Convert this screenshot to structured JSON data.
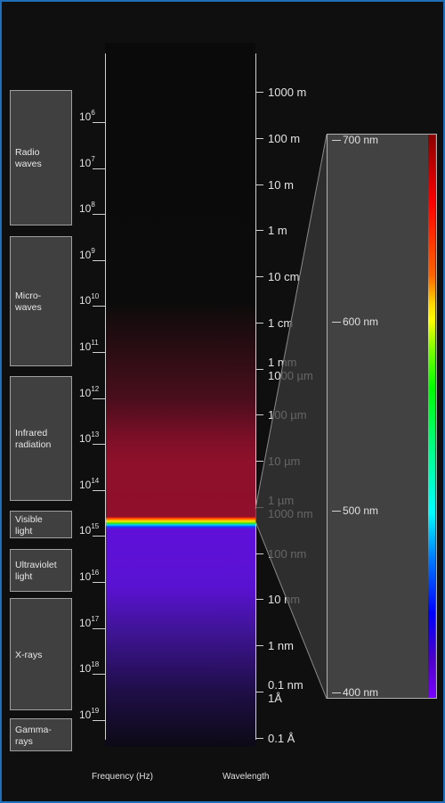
{
  "bands": [
    {
      "id": "radio",
      "label": "Radio\nwaves"
    },
    {
      "id": "microwaves",
      "label": "Micro-\nwaves"
    },
    {
      "id": "infrared",
      "label": "Infrared\nradiation"
    },
    {
      "id": "visible",
      "label": "Visible\nlight"
    },
    {
      "id": "ultraviolet",
      "label": "Ultraviolet\nlight"
    },
    {
      "id": "xrays",
      "label": "X-rays"
    },
    {
      "id": "gamma",
      "label": "Gamma-\nrays"
    }
  ],
  "frequency_labels": [
    {
      "base": "10",
      "exp": "6"
    },
    {
      "base": "10",
      "exp": "7"
    },
    {
      "base": "10",
      "exp": "8"
    },
    {
      "base": "10",
      "exp": "9"
    },
    {
      "base": "10",
      "exp": "10"
    },
    {
      "base": "10",
      "exp": "11"
    },
    {
      "base": "10",
      "exp": "12"
    },
    {
      "base": "10",
      "exp": "13"
    },
    {
      "base": "10",
      "exp": "14"
    },
    {
      "base": "10",
      "exp": "15"
    },
    {
      "base": "10",
      "exp": "16"
    },
    {
      "base": "10",
      "exp": "17"
    },
    {
      "base": "10",
      "exp": "18"
    },
    {
      "base": "10",
      "exp": "19"
    }
  ],
  "wavelength_labels": [
    "1000 m",
    "100 m",
    "10 m",
    "1 m",
    "10 cm",
    "1 cm",
    "1 mm\n1000 µm",
    "100 µm",
    "10 µm",
    "1 µm\n1000 nm",
    "100 nm",
    "10 nm",
    "1 nm",
    "0.1 nm\n1Å",
    "0.1 Å"
  ],
  "visible_nm_labels": [
    "700 nm",
    "600 nm",
    "500 nm",
    "400 nm"
  ],
  "axis_titles": {
    "frequency": "Frequency (Hz)",
    "wavelength": "Wavelength"
  },
  "colors": {
    "frame_border": "#1f6fb8",
    "band_fill": "#404040",
    "infrared": "#8e102a",
    "ultraviolet": "#5e10d8"
  }
}
